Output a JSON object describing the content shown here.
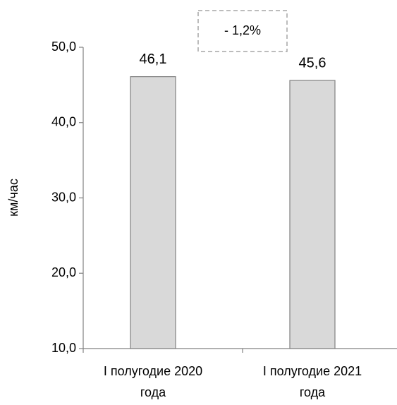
{
  "chart_data": {
    "type": "bar",
    "y_label": "км/час",
    "annotation": "- 1,2%",
    "categories": [
      "I полугодие 2020 года",
      "I полугодие 2021 года"
    ],
    "values": [
      46.1,
      45.6
    ],
    "value_labels": [
      "46,1",
      "45,6"
    ],
    "color": "#d9d9d9",
    "ylim": [
      10,
      50
    ],
    "yticks": [
      {
        "value": 10,
        "label": "10,0"
      },
      {
        "value": 20,
        "label": "20,0"
      },
      {
        "value": 30,
        "label": "30,0"
      },
      {
        "value": 40,
        "label": "40,0"
      },
      {
        "value": 50,
        "label": "50,0"
      }
    ],
    "grid": false
  }
}
